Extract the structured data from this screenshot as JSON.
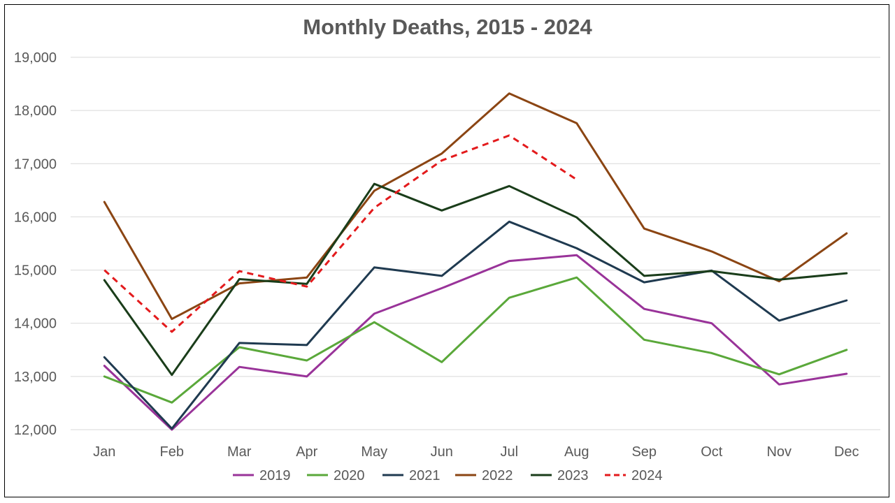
{
  "chart_data": {
    "type": "line",
    "title": "Monthly Deaths, 2015 - 2024",
    "xlabel": "",
    "ylabel": "",
    "categories": [
      "Jan",
      "Feb",
      "Mar",
      "Apr",
      "May",
      "Jun",
      "Jul",
      "Aug",
      "Sep",
      "Oct",
      "Nov",
      "Dec"
    ],
    "ylim": [
      12000,
      19000
    ],
    "yticks": [
      12000,
      13000,
      14000,
      15000,
      16000,
      17000,
      18000,
      19000
    ],
    "ytick_labels": [
      "12,000",
      "13,000",
      "14,000",
      "15,000",
      "16,000",
      "17,000",
      "18,000",
      "19,000"
    ],
    "grid": "horizontal",
    "legend_position": "bottom",
    "series": [
      {
        "name": "2019",
        "color": "#993399",
        "dashed": false,
        "values": [
          13200,
          12000,
          13180,
          13000,
          14180,
          14660,
          15170,
          15280,
          14270,
          14000,
          12850,
          13050
        ]
      },
      {
        "name": "2020",
        "color": "#5aa83a",
        "dashed": false,
        "values": [
          13000,
          12510,
          13550,
          13300,
          14020,
          13270,
          14480,
          14860,
          13690,
          13440,
          13040,
          13500
        ]
      },
      {
        "name": "2021",
        "color": "#1f3a50",
        "dashed": false,
        "values": [
          13360,
          12020,
          13630,
          13590,
          15050,
          14890,
          15910,
          15410,
          14770,
          14990,
          14050,
          14430
        ]
      },
      {
        "name": "2022",
        "color": "#8b4513",
        "dashed": false,
        "values": [
          16280,
          14080,
          14750,
          14860,
          16490,
          17190,
          18320,
          17760,
          15780,
          15350,
          14790,
          15690
        ]
      },
      {
        "name": "2023",
        "color": "#1a3d1a",
        "dashed": false,
        "values": [
          14810,
          13030,
          14830,
          14740,
          16620,
          16120,
          16580,
          15990,
          14890,
          14980,
          14820,
          14940
        ]
      },
      {
        "name": "2024",
        "color": "#e31a1c",
        "dashed": true,
        "values": [
          15000,
          13840,
          14980,
          14690,
          16170,
          17060,
          17530,
          16700,
          null,
          null,
          null,
          null
        ]
      }
    ]
  }
}
